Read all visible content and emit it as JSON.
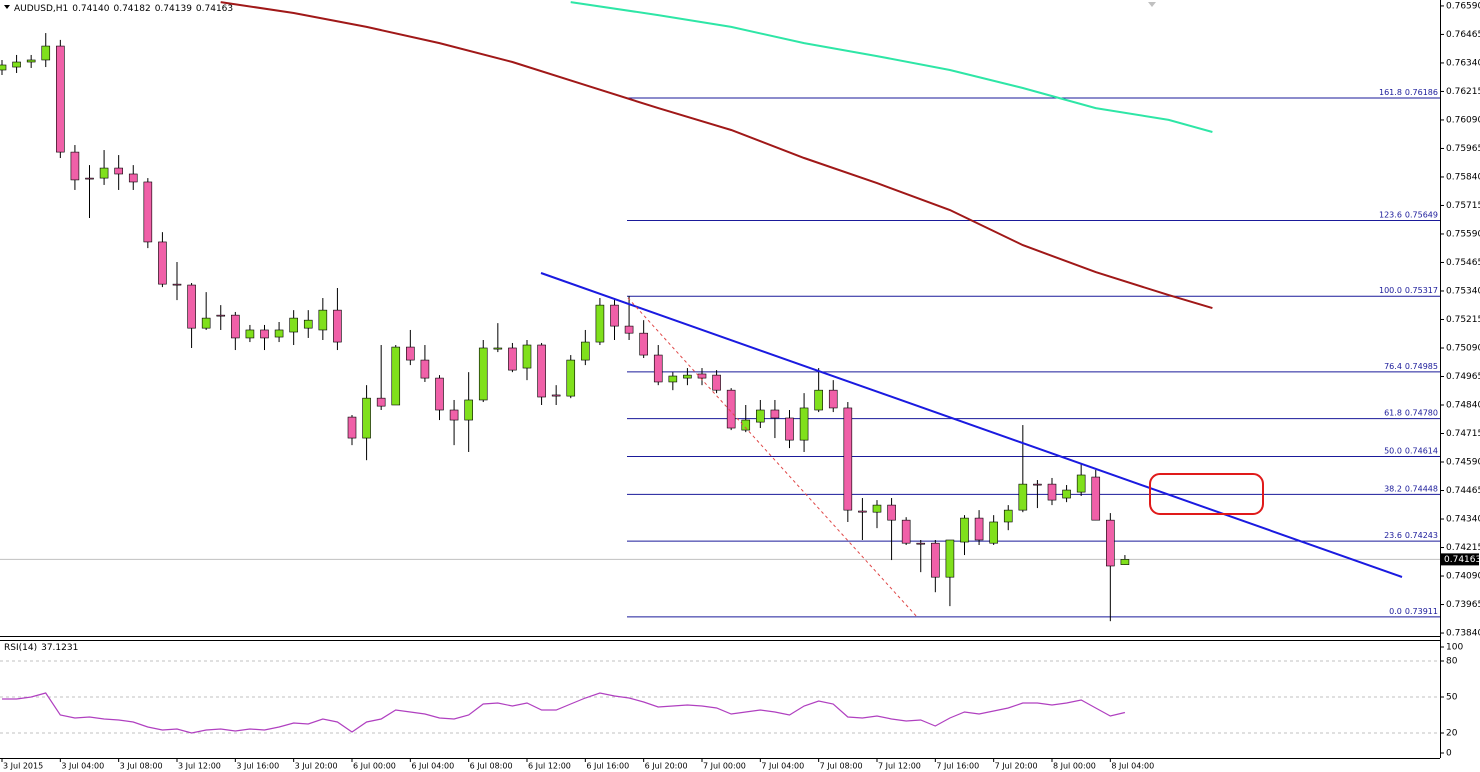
{
  "chart_data": [
    {
      "type": "candlestick",
      "title": "AUDUSD,H1",
      "ohlc_labels": [
        "0.74140",
        "0.74182",
        "0.74139",
        "0.74163"
      ],
      "categories": [
        "3 Jul 2015",
        null,
        null,
        null,
        "3 Jul 04:00",
        null,
        null,
        null,
        "3 Jul 08:00",
        null,
        null,
        null,
        "3 Jul 12:00",
        null,
        null,
        null,
        "3 Jul 16:00",
        null,
        null,
        null,
        "3 Jul 20:00",
        null,
        null,
        null,
        "6 Jul 00:00",
        null,
        null,
        null,
        "6 Jul 04:00",
        null,
        null,
        null,
        "6 Jul 08:00",
        null,
        null,
        null,
        "6 Jul 12:00",
        null,
        null,
        null,
        "6 Jul 16:00",
        null,
        null,
        null,
        "6 Jul 20:00",
        null,
        null,
        null,
        "7 Jul 00:00",
        null,
        null,
        null,
        "7 Jul 04:00",
        null,
        null,
        null,
        "7 Jul 08:00",
        null,
        null,
        null,
        "7 Jul 12:00",
        null,
        null,
        null,
        "7 Jul 16:00",
        null,
        null,
        null,
        "7 Jul 20:00",
        null,
        null,
        null,
        "8 Jul 00:00",
        null,
        null,
        null,
        "8 Jul 04:00",
        null
      ],
      "open": [
        0.76309,
        0.76322,
        0.76344,
        0.76353,
        0.76414,
        0.75949,
        0.75835,
        0.75835,
        0.75879,
        0.75853,
        0.75818,
        0.75555,
        0.7537,
        0.75366,
        0.75177,
        0.75234,
        0.75234,
        0.75134,
        0.75169,
        0.75138,
        0.7516,
        0.75177,
        0.75169,
        0.75256,
        0.74787,
        0.74695,
        0.7487,
        0.7484,
        0.75094,
        0.75037,
        0.74958,
        0.74818,
        0.74774,
        0.74862,
        0.75085,
        0.7509,
        0.75002,
        0.75103,
        0.74884,
        0.74879,
        0.75037,
        0.75116,
        0.75278,
        0.75186,
        0.75155,
        0.75059,
        0.74941,
        0.74958,
        0.74976,
        0.74971,
        0.74905,
        0.7473,
        0.74765,
        0.74818,
        0.74783,
        0.74686,
        0.74818,
        0.74905,
        0.74827,
        0.74375,
        0.7437,
        0.74401,
        0.74335,
        0.74234,
        0.74234,
        0.74085,
        0.74239,
        0.74344,
        0.74234,
        0.74327,
        0.74379,
        0.74493,
        0.74493,
        0.74432,
        0.74458,
        0.74524,
        0.74335,
        0.7414
      ],
      "high": [
        0.76353,
        0.76375,
        0.76375,
        0.76471,
        0.76441,
        0.7598,
        0.75892,
        0.75958,
        0.75936,
        0.75892,
        0.75835,
        0.75598,
        0.75467,
        0.75375,
        0.75335,
        0.75278,
        0.75248,
        0.75191,
        0.75191,
        0.75204,
        0.75256,
        0.75256,
        0.75309,
        0.75353,
        0.74796,
        0.74927,
        0.75103,
        0.75103,
        0.75169,
        0.75103,
        0.74971,
        0.74862,
        0.74984,
        0.75125,
        0.75199,
        0.75112,
        0.75125,
        0.75112,
        0.74927,
        0.75059,
        0.75169,
        0.75309,
        0.75309,
        0.75318,
        0.75212,
        0.75103,
        0.74984,
        0.75002,
        0.75002,
        0.74993,
        0.74914,
        0.7484,
        0.74862,
        0.74862,
        0.74818,
        0.74892,
        0.75002,
        0.74949,
        0.74853,
        0.74432,
        0.74423,
        0.74432,
        0.74348,
        0.74248,
        0.74248,
        0.74248,
        0.74357,
        0.74379,
        0.74357,
        0.74401,
        0.74752,
        0.74511,
        0.7452,
        0.74489,
        0.74585,
        0.74555,
        0.74366,
        0.74182
      ],
      "low": [
        0.76287,
        0.76296,
        0.76318,
        0.76322,
        0.75923,
        0.75783,
        0.7566,
        0.75805,
        0.75783,
        0.75783,
        0.75528,
        0.75357,
        0.753,
        0.7509,
        0.75169,
        0.75169,
        0.75081,
        0.75116,
        0.75081,
        0.75116,
        0.75103,
        0.75134,
        0.75125,
        0.75081,
        0.74664,
        0.74598,
        0.74818,
        0.7484,
        0.75015,
        0.74941,
        0.74774,
        0.74664,
        0.74634,
        0.74853,
        0.75072,
        0.74984,
        0.74949,
        0.7484,
        0.7484,
        0.7487,
        0.75015,
        0.75103,
        0.75125,
        0.75125,
        0.75046,
        0.74927,
        0.74905,
        0.74927,
        0.74927,
        0.74892,
        0.7473,
        0.74721,
        0.74739,
        0.74695,
        0.74651,
        0.74634,
        0.74809,
        0.74809,
        0.74327,
        0.74248,
        0.743,
        0.7416,
        0.74226,
        0.74107,
        0.74019,
        0.73958,
        0.74182,
        0.74226,
        0.74226,
        0.74291,
        0.7437,
        0.74388,
        0.74401,
        0.74414,
        0.74441,
        0.74335,
        0.73892,
        0.74139
      ],
      "close": [
        0.76331,
        0.76344,
        0.76353,
        0.76414,
        0.75949,
        0.75827,
        0.75831,
        0.75879,
        0.75853,
        0.75818,
        0.75555,
        0.7537,
        0.75366,
        0.75177,
        0.75221,
        0.7523,
        0.75134,
        0.75169,
        0.75134,
        0.75169,
        0.75221,
        0.75212,
        0.75256,
        0.75116,
        0.74695,
        0.7487,
        0.74835,
        0.75094,
        0.75037,
        0.74958,
        0.74818,
        0.74774,
        0.74862,
        0.7509,
        0.7509,
        0.74993,
        0.75103,
        0.74875,
        0.74879,
        0.75037,
        0.75116,
        0.75278,
        0.75186,
        0.75155,
        0.75059,
        0.74941,
        0.74967,
        0.74971,
        0.74958,
        0.74905,
        0.74739,
        0.74774,
        0.74818,
        0.74783,
        0.74686,
        0.74827,
        0.74905,
        0.74827,
        0.74379,
        0.7437,
        0.74401,
        0.74335,
        0.74234,
        0.7423,
        0.74085,
        0.74248,
        0.74344,
        0.74248,
        0.74327,
        0.74379,
        0.74493,
        0.74489,
        0.74423,
        0.74467,
        0.74533,
        0.74335,
        0.74134,
        0.74163
      ],
      "up_color": "#80e01c",
      "down_color": "#f060a8",
      "series": [
        {
          "color": "#a01818",
          "x": [
            15,
            20,
            25,
            30,
            35,
            40,
            45,
            50,
            55,
            60,
            65,
            70,
            75,
            80,
            83
          ],
          "values": [
            0.76607,
            0.76559,
            0.76498,
            0.76427,
            0.76344,
            0.76243,
            0.76142,
            0.76046,
            0.75923,
            0.75813,
            0.75695,
            0.75541,
            0.75423,
            0.75322,
            0.75265
          ]
        },
        {
          "color": "#2ee6a6",
          "x": [
            39,
            45,
            50,
            55,
            60,
            65,
            70,
            75,
            80,
            83
          ],
          "values": [
            0.76607,
            0.7655,
            0.76498,
            0.76427,
            0.7637,
            0.76309,
            0.7623,
            0.76142,
            0.7609,
            0.76037
          ]
        }
      ],
      "fib_color": "#1a1a9a",
      "fib_levels": [
        {
          "ratio": 161.8,
          "price": 0.76186
        },
        {
          "ratio": 123.6,
          "price": 0.75649
        },
        {
          "ratio": {
            "value": 100,
            "label": "100.0"
          },
          "price": 0.75317
        },
        {
          "ratio": 76.4,
          "price": 0.74985
        },
        {
          "ratio": 61.8,
          "price": {
            "value": 0.7478,
            "label": "0.74780"
          }
        },
        {
          "ratio": {
            "value": 50,
            "label": "50.0"
          },
          "price": 0.74614
        },
        {
          "ratio": 38.2,
          "price": 0.74448
        },
        {
          "ratio": 23.6,
          "price": 0.74243
        },
        {
          "ratio": {
            "value": 0,
            "label": "0.0"
          },
          "price": 0.73911
        }
      ],
      "ylim": [
        0.73827,
        0.76616
      ],
      "yticks": [
        {
          "value": 0.7659,
          "label": "0.76590"
        },
        0.76465,
        {
          "value": 0.7634,
          "label": "0.76340"
        },
        0.76215,
        {
          "value": 0.7609,
          "label": "0.76090"
        },
        0.75965,
        {
          "value": 0.7584,
          "label": "0.75840"
        },
        0.75715,
        {
          "value": 0.7559,
          "label": "0.75590"
        },
        0.75465,
        {
          "value": 0.7534,
          "label": "0.75340"
        },
        0.75215,
        {
          "value": 0.7509,
          "label": "0.75090"
        },
        0.74965,
        {
          "value": 0.7484,
          "label": "0.74840"
        },
        0.74715,
        {
          "value": 0.7459,
          "label": "0.74590"
        },
        0.74465,
        {
          "value": 0.7434,
          "label": "0.74340"
        },
        0.74215,
        {
          "value": 0.7409,
          "label": "0.74090"
        },
        0.73965,
        {
          "value": 0.7384,
          "label": "0.73840"
        }
      ]
    },
    {
      "type": "line",
      "title": "RSI(14)",
      "color": "#b040c0",
      "values": [
        48.3,
        48.3,
        50,
        53.3,
        35,
        32.5,
        33.3,
        31.7,
        30.8,
        29.2,
        25,
        22.5,
        23.3,
        20,
        22.5,
        23.3,
        21.7,
        23.3,
        22.5,
        25,
        28.3,
        27.5,
        31.7,
        29.2,
        20.8,
        29.2,
        31.7,
        39.2,
        37.5,
        35.8,
        32.5,
        31.7,
        35,
        44.2,
        45,
        42.5,
        45,
        39.2,
        39.2,
        44.2,
        49.2,
        53.3,
        50.8,
        49.2,
        45.8,
        41.7,
        42.5,
        43.3,
        42.5,
        40.8,
        35.8,
        37.5,
        39.2,
        37.5,
        35,
        42.5,
        46.7,
        44.2,
        33.3,
        32.5,
        34.2,
        31.7,
        30,
        30.8,
        25.8,
        32.5,
        37.5,
        35.8,
        38.3,
        40.8,
        45,
        45,
        43.3,
        45,
        47.5,
        40.8,
        34.2,
        37.1231
      ],
      "ylim": [
        0,
        100
      ],
      "yticks": [
        100,
        80,
        50,
        20,
        0
      ]
    }
  ]
}
